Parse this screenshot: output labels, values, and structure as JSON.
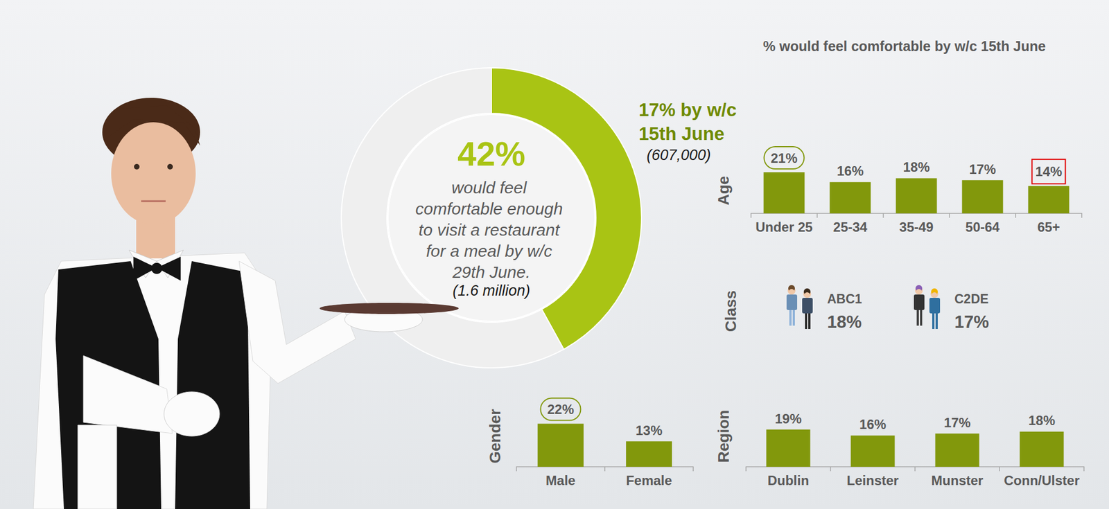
{
  "chart_data": [
    {
      "type": "pie",
      "values": [
        42,
        58
      ],
      "colors": [
        "#a9c414",
        "#efefef"
      ],
      "data_labels": false,
      "annotations": {
        "center_value": "42%",
        "center_text": "would feel comfortable enough to visit a restaurant for a meal by w/c 29th June.",
        "center_note": "(1.6 million)",
        "side_text": "17% by w/c 15th June",
        "side_note": "(607,000)"
      }
    },
    {
      "type": "bar",
      "title": "% would feel comfortable by w/c 15th June",
      "ylabel": "Age",
      "categories": [
        "Under 25",
        "25-34",
        "35-49",
        "50-64",
        "65+"
      ],
      "values": [
        21,
        16,
        18,
        17,
        14
      ],
      "value_labels": [
        "21%",
        "16%",
        "18%",
        "17%",
        "14%"
      ],
      "color": "#82980c",
      "ylim": [
        0,
        25
      ],
      "data_labels": true,
      "tick_labels": "x"
    },
    {
      "type": "icons",
      "ylabel": "Class",
      "categories": [
        "ABC1",
        "C2DE"
      ],
      "values": [
        18,
        17
      ],
      "value_labels": [
        "18%",
        "17%"
      ],
      "data_labels": true
    },
    {
      "type": "bar",
      "ylabel": "Gender",
      "categories": [
        "Male",
        "Female"
      ],
      "values": [
        22,
        13
      ],
      "value_labels": [
        "22%",
        "13%"
      ],
      "color": "#82980c",
      "ylim": [
        0,
        25
      ],
      "data_labels": true,
      "tick_labels": "x"
    },
    {
      "type": "bar",
      "ylabel": "Region",
      "categories": [
        "Dublin",
        "Leinster",
        "Munster",
        "Conn/Ulster"
      ],
      "values": [
        19,
        16,
        17,
        18
      ],
      "value_labels": [
        "19%",
        "16%",
        "17%",
        "18%"
      ],
      "color": "#82980c",
      "ylim": [
        0,
        25
      ],
      "data_labels": true,
      "tick_labels": "x"
    }
  ]
}
